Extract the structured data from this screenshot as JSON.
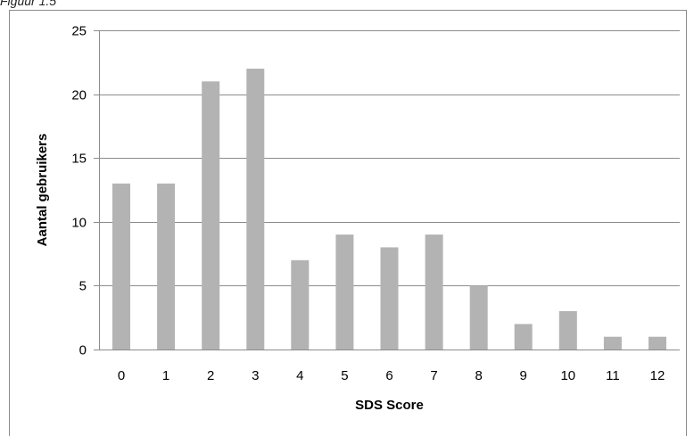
{
  "figure": {
    "caption": "Figuur 1.5"
  },
  "chart_data": {
    "type": "bar",
    "categories": [
      "0",
      "1",
      "2",
      "3",
      "4",
      "5",
      "6",
      "7",
      "8",
      "9",
      "10",
      "11",
      "12"
    ],
    "values": [
      13,
      13,
      21,
      22,
      7,
      9,
      8,
      9,
      5,
      2,
      3,
      1,
      1
    ],
    "title": "",
    "xlabel": "SDS Score",
    "ylabel": "Aantal gebruikers",
    "ylim": [
      0,
      25
    ],
    "yticks": [
      0,
      5,
      10,
      15,
      20,
      25
    ],
    "grid": true,
    "legend": "none",
    "colors": {
      "bar": "#b3b3b3",
      "grid": "#8c8c8c",
      "axis": "#8c8c8c"
    }
  }
}
